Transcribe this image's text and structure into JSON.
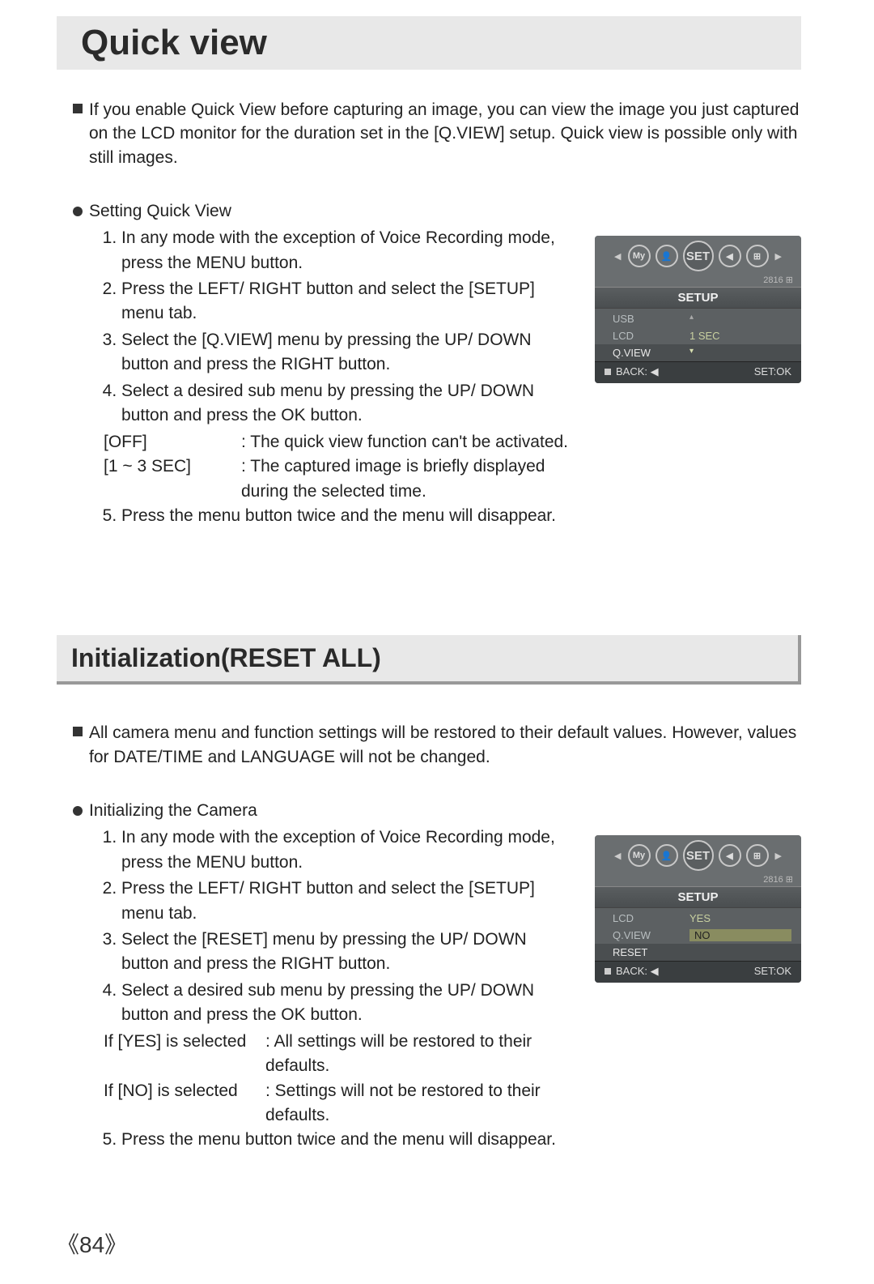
{
  "section1": {
    "title": "Quick view",
    "intro": "If you enable Quick View before capturing an image, you can view the image you just captured on the LCD monitor for the duration set in the [Q.VIEW] setup. Quick view is possible only with still images.",
    "sub_heading": "Setting Quick View",
    "steps": [
      "In any mode with the exception of Voice Recording mode, press the MENU button.",
      "Press the LEFT/ RIGHT button and select the [SETUP] menu tab.",
      "Select the [Q.VIEW] menu by pressing the UP/ DOWN button and press the RIGHT button.",
      "Select a desired sub menu by pressing the UP/ DOWN button and press the OK button."
    ],
    "options": [
      {
        "label": "[OFF]",
        "desc": ": The quick view function can't be activated."
      },
      {
        "label": "[1 ~ 3 SEC]",
        "desc": ": The captured image is briefly displayed during the selected time."
      }
    ],
    "step5": "Press the menu button twice and the menu will disappear."
  },
  "section2": {
    "title": "Initialization(RESET ALL)",
    "intro": "All camera menu and function settings will be restored to their default values. However, values for DATE/TIME and LANGUAGE will not be changed.",
    "sub_heading": "Initializing the Camera",
    "steps": [
      "In any mode with the exception of Voice Recording mode, press the MENU button.",
      "Press the LEFT/ RIGHT button and select the [SETUP] menu tab.",
      "Select the [RESET] menu by pressing the UP/ DOWN button and press the RIGHT button.",
      "Select a desired sub menu by pressing the UP/ DOWN button and press the OK button."
    ],
    "options": [
      {
        "label": "If [YES] is selected",
        "desc": ": All settings will be restored to their defaults."
      },
      {
        "label": "If [NO] is selected",
        "desc": ": Settings will not be restored to their defaults."
      }
    ],
    "step5": "Press the menu button twice and the menu will disappear."
  },
  "lcd1": {
    "icons": [
      "My",
      "👤",
      "SET",
      "◀",
      "⊞"
    ],
    "sub_text": "2816",
    "setup_label": "SETUP",
    "rows": [
      {
        "l": "USB",
        "r": "▴",
        "hl": false
      },
      {
        "l": "LCD",
        "r": "1 SEC",
        "hl": false
      },
      {
        "l": "Q.VIEW",
        "r": "▾",
        "hl": true
      }
    ],
    "back": "BACK: ◀",
    "set": "SET:OK"
  },
  "lcd2": {
    "icons": [
      "My",
      "👤",
      "SET",
      "◀",
      "⊞"
    ],
    "sub_text": "2816",
    "setup_label": "SETUP",
    "rows": [
      {
        "l": "LCD",
        "r": "YES",
        "hl": false
      },
      {
        "l": "Q.VIEW",
        "r": "NO",
        "hl": false,
        "r_hl": true
      },
      {
        "l": "RESET",
        "r": "",
        "hl": true
      }
    ],
    "back": "BACK: ◀",
    "set": "SET:OK"
  },
  "page_number": "《84》",
  "colors": {
    "title_bg": "#e8e8e8",
    "lcd_bg": "#6a6e70",
    "lcd_menu_bg": "#5c6062",
    "lcd_bottom_bg": "#3a3e40",
    "text": "#222222"
  }
}
